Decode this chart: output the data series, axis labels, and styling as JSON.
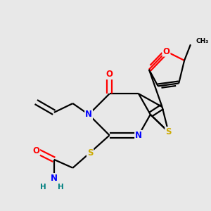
{
  "background_color": "#e8e8e8",
  "bond_color": "#000000",
  "atom_colors": {
    "N": "#0000ff",
    "O": "#ff0000",
    "S": "#ccaa00",
    "C": "#000000",
    "H": "#008080"
  }
}
